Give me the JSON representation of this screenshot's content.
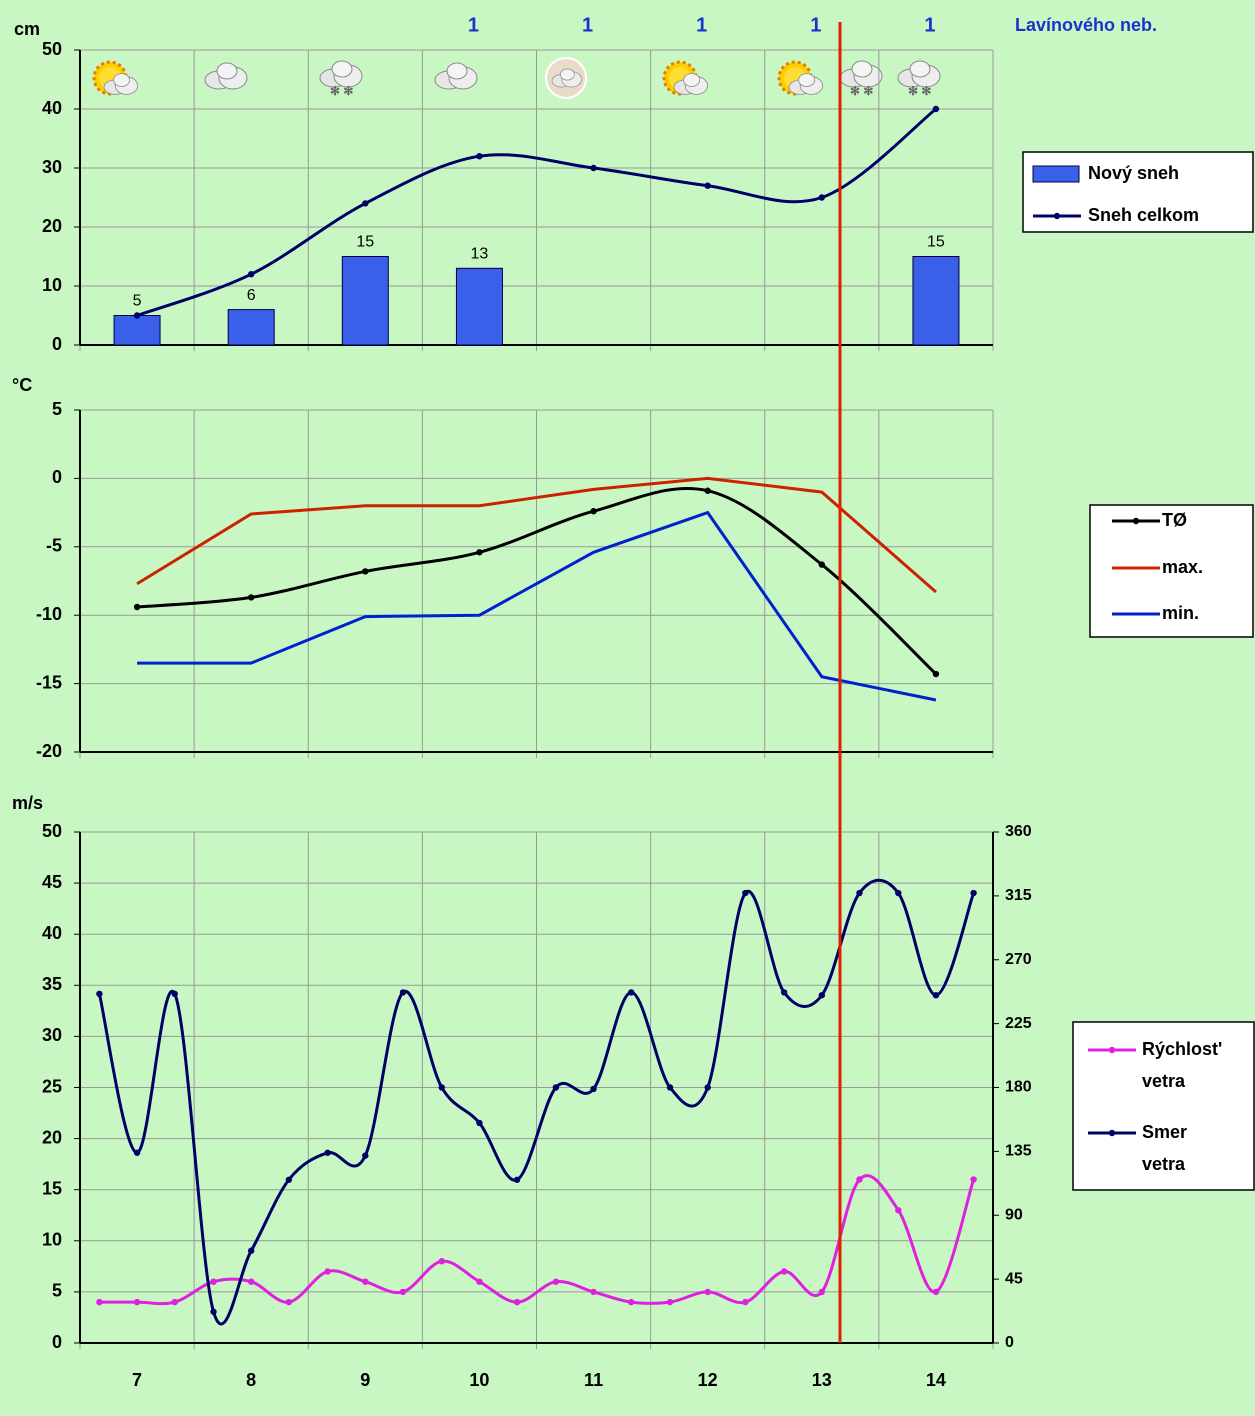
{
  "chart_data": [
    {
      "type": "bar",
      "y_label": "cm",
      "xlim": [
        6.5,
        14.5
      ],
      "ylim": [
        0,
        50
      ],
      "yticks": [
        0,
        10,
        20,
        30,
        40,
        50
      ],
      "grid": true,
      "x": [
        7,
        8,
        9,
        10,
        11,
        12,
        13,
        14
      ],
      "annotation": {
        "label": "Lavínového neb.",
        "values": [
          null,
          null,
          null,
          1,
          1,
          1,
          1,
          1
        ],
        "color": "#1a33cc"
      },
      "series": [
        {
          "name": "Nový sneh",
          "type": "bar",
          "color": "#3a5fe8",
          "values": [
            5,
            6,
            15,
            13,
            null,
            null,
            null,
            15
          ]
        },
        {
          "name": "Sneh celkom",
          "type": "line",
          "smooth": true,
          "markers": true,
          "color": "#000066",
          "values": [
            5,
            12,
            24,
            32,
            30,
            27,
            25,
            40
          ]
        }
      ]
    },
    {
      "type": "line",
      "y_label": "°C",
      "xlim": [
        6.5,
        14.5
      ],
      "ylim": [
        -20,
        5
      ],
      "yticks": [
        -20,
        -15,
        -10,
        -5,
        0,
        5
      ],
      "grid": true,
      "x": [
        7,
        8,
        9,
        10,
        11,
        12,
        13,
        14
      ],
      "series": [
        {
          "name": "TØ",
          "smooth": true,
          "markers": true,
          "color": "#000000",
          "values": [
            -9.4,
            -8.7,
            -6.8,
            -5.4,
            -2.4,
            -0.9,
            -6.3,
            -14.3
          ]
        },
        {
          "name": "max.",
          "smooth": false,
          "markers": false,
          "color": "#cc2200",
          "values": [
            -7.7,
            -2.6,
            -2.0,
            -2.0,
            -0.8,
            0.0,
            -1.0,
            -8.3
          ]
        },
        {
          "name": "min.",
          "smooth": false,
          "markers": false,
          "color": "#0022cc",
          "values": [
            -13.5,
            -13.5,
            -10.1,
            -10.0,
            -5.4,
            -2.5,
            -14.5,
            -16.2
          ]
        }
      ]
    },
    {
      "type": "line",
      "y_label": "m/s",
      "xlim": [
        6.5,
        14.5
      ],
      "xticks": [
        7,
        8,
        9,
        10,
        11,
        12,
        13,
        14
      ],
      "ylim": [
        0,
        50
      ],
      "yticks": [
        0,
        5,
        10,
        15,
        20,
        25,
        30,
        35,
        40,
        45,
        50
      ],
      "y2lim": [
        0,
        360
      ],
      "y2ticks": [
        0,
        45,
        90,
        135,
        180,
        225,
        270,
        315,
        360
      ],
      "grid": true,
      "x": [
        6.67,
        7,
        7.33,
        7.67,
        8,
        8.33,
        8.67,
        9,
        9.33,
        9.67,
        10,
        10.33,
        10.67,
        11,
        11.33,
        11.67,
        12,
        12.33,
        12.67,
        13,
        13.33,
        13.67,
        14,
        14.33
      ],
      "series": [
        {
          "name": "Rýchlost' vetra",
          "smooth": true,
          "markers": true,
          "color": "#e020e0",
          "values": [
            4,
            4,
            4,
            6,
            6,
            4,
            7,
            6,
            5,
            8,
            6,
            4,
            6,
            5,
            4,
            4,
            5,
            4,
            7,
            5,
            16,
            13,
            5,
            16
          ]
        },
        {
          "name": "Smer vetra",
          "axis": "y2",
          "smooth": true,
          "markers": true,
          "color": "#000066",
          "values": [
            246,
            134,
            246,
            22,
            65,
            115,
            134,
            132,
            247,
            180,
            155,
            115,
            180,
            179,
            247,
            180,
            180,
            317,
            247,
            245,
            317,
            317,
            245,
            317
          ]
        }
      ]
    }
  ]
}
